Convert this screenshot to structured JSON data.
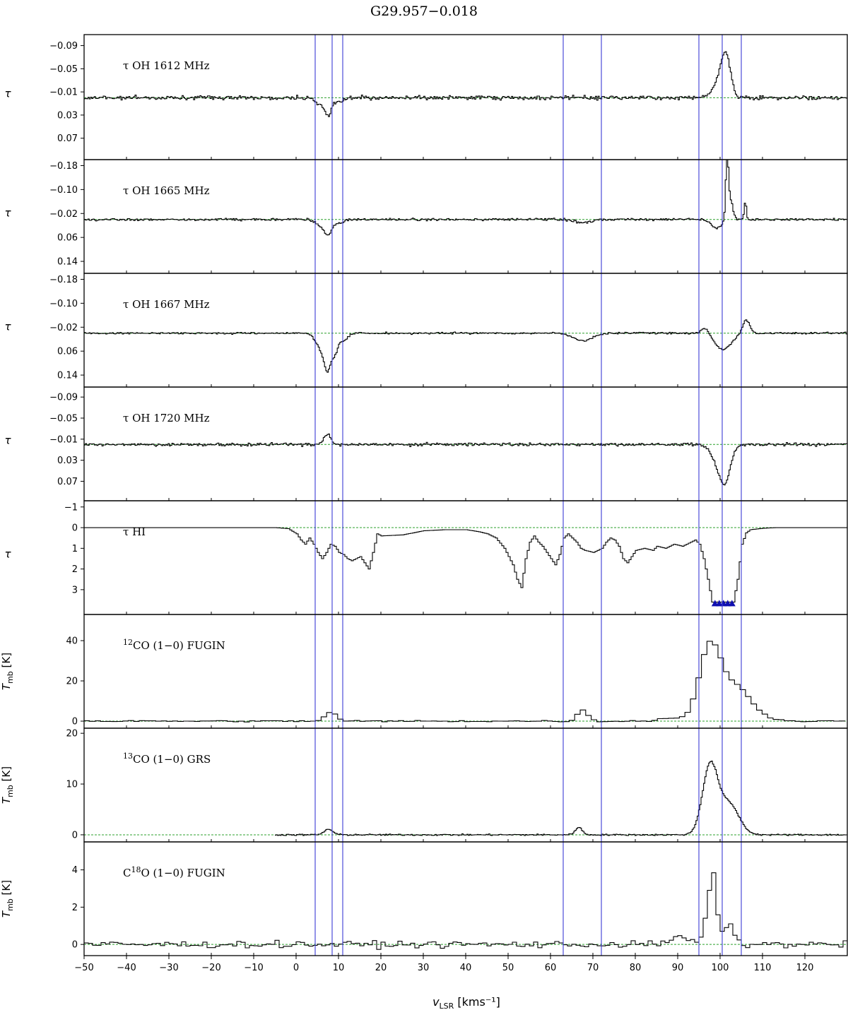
{
  "figure": {
    "title": "G29.957−0.018",
    "xlabel": "v",
    "xlabel_sub": "LSR",
    "xlabel_unit": " [kms⁻¹]",
    "xlim": [
      -50,
      130
    ],
    "xticks": [
      -50,
      -40,
      -30,
      -20,
      -10,
      0,
      10,
      20,
      30,
      40,
      50,
      60,
      70,
      80,
      90,
      100,
      110,
      120
    ],
    "vlines": [
      4.5,
      8.5,
      11,
      63,
      72,
      95,
      100.5,
      105
    ],
    "colors": {
      "spectrum": "#000000",
      "baseline": "#2ca02c",
      "vline": "#3b3bd6",
      "marker": "#1010b0"
    }
  },
  "chart_data": [
    {
      "type": "line",
      "label": "τ OH 1612 MHz",
      "ylabel": "τ",
      "ylim": [
        0.107,
        -0.109
      ],
      "yticks": [
        -0.09,
        -0.05,
        -0.01,
        0.03,
        0.07
      ],
      "ytick_labels": [
        "−0.09",
        "−0.05",
        "−0.01",
        "0.03",
        "0.07"
      ],
      "baseline": 0.0,
      "noise": 0.0035,
      "noise_range": [
        -50,
        130
      ],
      "components": [
        {
          "center": 7.5,
          "amp": 0.028,
          "width": 0.8
        },
        {
          "center": 5.5,
          "amp": 0.012,
          "width": 1.2
        },
        {
          "center": 10.0,
          "amp": 0.008,
          "width": 1.0
        },
        {
          "center": 101.3,
          "amp": -0.065,
          "width": 1.1
        },
        {
          "center": 99.5,
          "amp": -0.025,
          "width": 1.5
        }
      ]
    },
    {
      "type": "line",
      "label": "τ OH 1665 MHz",
      "ylabel": "τ",
      "ylim": [
        0.18,
        -0.2
      ],
      "yticks": [
        -0.18,
        -0.1,
        -0.02,
        0.06,
        0.14
      ],
      "ytick_labels": [
        "−0.18",
        "−0.10",
        "−0.02",
        "0.06",
        "0.14"
      ],
      "baseline": 0.0,
      "noise": 0.004,
      "noise_range": [
        -50,
        130
      ],
      "components": [
        {
          "center": 7.5,
          "amp": 0.045,
          "width": 0.9
        },
        {
          "center": 5.8,
          "amp": 0.02,
          "width": 1.2
        },
        {
          "center": 10.0,
          "amp": 0.012,
          "width": 1.0
        },
        {
          "center": 67.5,
          "amp": 0.01,
          "width": 2.0
        },
        {
          "center": 101.5,
          "amp": -0.2,
          "width": 0.3
        },
        {
          "center": 102.2,
          "amp": -0.07,
          "width": 0.6
        },
        {
          "center": 105.8,
          "amp": -0.06,
          "width": 0.25
        },
        {
          "center": 99.0,
          "amp": 0.03,
          "width": 1.2
        }
      ]
    },
    {
      "type": "line",
      "label": "τ OH 1667 MHz",
      "ylabel": "τ",
      "ylim": [
        0.18,
        -0.2
      ],
      "yticks": [
        -0.18,
        -0.1,
        -0.02,
        0.06,
        0.14
      ],
      "ytick_labels": [
        "−0.18",
        "−0.10",
        "−0.02",
        "0.06",
        "0.14"
      ],
      "baseline": 0.0,
      "noise": 0.003,
      "noise_range": [
        -50,
        130
      ],
      "components": [
        {
          "center": 7.3,
          "amp": 0.1,
          "width": 0.8
        },
        {
          "center": 5.8,
          "amp": 0.05,
          "width": 1.3
        },
        {
          "center": 9.0,
          "amp": 0.06,
          "width": 0.7
        },
        {
          "center": 11.0,
          "amp": 0.025,
          "width": 1.0
        },
        {
          "center": 67.5,
          "amp": 0.025,
          "width": 2.2
        },
        {
          "center": 96.5,
          "amp": -0.02,
          "width": 1.0
        },
        {
          "center": 100.5,
          "amp": 0.055,
          "width": 2.0
        },
        {
          "center": 106.0,
          "amp": -0.045,
          "width": 0.8
        }
      ]
    },
    {
      "type": "line",
      "label": "τ OH 1720 MHz",
      "ylabel": "τ",
      "ylim": [
        0.107,
        -0.109
      ],
      "yticks": [
        -0.09,
        -0.05,
        -0.01,
        0.03,
        0.07
      ],
      "ytick_labels": [
        "−0.09",
        "−0.05",
        "−0.01",
        "0.03",
        "0.07"
      ],
      "baseline": 0.0,
      "noise": 0.003,
      "noise_range": [
        -50,
        130
      ],
      "components": [
        {
          "center": 7.3,
          "amp": -0.02,
          "width": 0.8
        },
        {
          "center": 101.0,
          "amp": 0.065,
          "width": 1.3
        },
        {
          "center": 99.0,
          "amp": 0.025,
          "width": 1.5
        }
      ]
    },
    {
      "type": "line",
      "label": "τ HI",
      "ylabel": "τ",
      "ylim": [
        4.2,
        -1.3
      ],
      "yticks": [
        -1,
        0,
        1,
        2,
        3
      ],
      "ytick_labels": [
        "−1",
        "0",
        "1",
        "2",
        "3"
      ],
      "baseline": 0.0,
      "noise": 0.0,
      "noise_range": [
        -50,
        130
      ],
      "points": [
        [
          -50,
          0
        ],
        [
          -5,
          0
        ],
        [
          -2,
          0.05
        ],
        [
          0,
          0.3
        ],
        [
          1,
          0.6
        ],
        [
          2,
          0.8
        ],
        [
          3,
          0.5
        ],
        [
          4,
          0.8
        ],
        [
          5,
          1.2
        ],
        [
          6,
          1.5
        ],
        [
          7,
          1.2
        ],
        [
          8,
          0.8
        ],
        [
          9,
          0.9
        ],
        [
          10,
          1.2
        ],
        [
          11,
          1.3
        ],
        [
          12,
          1.5
        ],
        [
          13,
          1.6
        ],
        [
          14,
          1.5
        ],
        [
          15,
          1.4
        ],
        [
          16,
          1.7
        ],
        [
          17,
          2.0
        ],
        [
          18,
          1.2
        ],
        [
          19,
          0.3
        ],
        [
          20,
          0.4
        ],
        [
          25,
          0.35
        ],
        [
          30,
          0.15
        ],
        [
          35,
          0.1
        ],
        [
          40,
          0.1
        ],
        [
          43,
          0.2
        ],
        [
          45,
          0.3
        ],
        [
          47,
          0.5
        ],
        [
          49,
          1.0
        ],
        [
          51,
          1.8
        ],
        [
          52,
          2.5
        ],
        [
          53,
          2.9
        ],
        [
          54,
          1.5
        ],
        [
          55,
          0.7
        ],
        [
          56,
          0.4
        ],
        [
          57,
          0.7
        ],
        [
          58,
          0.9
        ],
        [
          60,
          1.5
        ],
        [
          61,
          1.8
        ],
        [
          62,
          1.3
        ],
        [
          63,
          0.5
        ],
        [
          64,
          0.3
        ],
        [
          65,
          0.5
        ],
        [
          66,
          0.7
        ],
        [
          67,
          1.0
        ],
        [
          68,
          1.1
        ],
        [
          70,
          1.2
        ],
        [
          72,
          1.0
        ],
        [
          73,
          0.7
        ],
        [
          74,
          0.5
        ],
        [
          75,
          0.6
        ],
        [
          76,
          0.9
        ],
        [
          77,
          1.5
        ],
        [
          78,
          1.7
        ],
        [
          79,
          1.4
        ],
        [
          80,
          1.1
        ],
        [
          82,
          1.0
        ],
        [
          84,
          1.1
        ],
        [
          85,
          0.9
        ],
        [
          87,
          1.0
        ],
        [
          89,
          0.8
        ],
        [
          91,
          0.9
        ],
        [
          93,
          0.7
        ],
        [
          94,
          0.6
        ],
        [
          95,
          0.8
        ],
        [
          96,
          1.5
        ],
        [
          97,
          2.5
        ],
        [
          98,
          3.6
        ],
        [
          99,
          3.6
        ],
        [
          100,
          3.6
        ],
        [
          101,
          3.6
        ],
        [
          102,
          3.6
        ],
        [
          103,
          3.6
        ],
        [
          104,
          2.5
        ],
        [
          105,
          0.8
        ],
        [
          106,
          0.25
        ],
        [
          107,
          0.1
        ],
        [
          110,
          0.03
        ],
        [
          113,
          0
        ],
        [
          130,
          0
        ]
      ],
      "saturated": {
        "x": [
          98.8,
          99.8,
          100.8,
          101.8,
          102.8
        ],
        "value": 3.6
      }
    },
    {
      "type": "line",
      "label": "CO (1−0) FUGIN",
      "label_sup": "12",
      "label_prefix": "",
      "ylabel": "T",
      "ylabel_sub": "mb",
      "ylabel_unit": " [K]",
      "ylim": [
        -3.5,
        53
      ],
      "yticks": [
        0,
        20,
        40
      ],
      "ytick_labels": [
        "0",
        "20",
        "40"
      ],
      "baseline": 0.0,
      "noise": 0.4,
      "noise_range": [
        -50,
        130
      ],
      "components": [
        {
          "center": 7.5,
          "amp": 4.5,
          "width": 1.3
        },
        {
          "center": 67.0,
          "amp": 5.5,
          "width": 1.2
        },
        {
          "center": 96.8,
          "amp": 33.0,
          "width": 2.4
        },
        {
          "center": 102.5,
          "amp": 18.0,
          "width": 4.0
        },
        {
          "center": 88.0,
          "amp": 1.5,
          "width": 3.0
        }
      ]
    },
    {
      "type": "line",
      "label": "CO (1−0) GRS",
      "label_sup": "13",
      "label_prefix": "",
      "ylabel": "T",
      "ylabel_sub": "mb",
      "ylabel_unit": " [K]",
      "ylim": [
        -1.4,
        21
      ],
      "yticks": [
        0,
        10,
        20
      ],
      "ytick_labels": [
        "0",
        "10",
        "20"
      ],
      "baseline": 0.0,
      "noise": 0.15,
      "noise_range": [
        -5,
        130
      ],
      "components": [
        {
          "center": 7.5,
          "amp": 1.1,
          "width": 1.0
        },
        {
          "center": 66.5,
          "amp": 1.5,
          "width": 0.8
        },
        {
          "center": 97.5,
          "amp": 13.5,
          "width": 1.8
        },
        {
          "center": 102.0,
          "amp": 6.0,
          "width": 2.3
        }
      ]
    },
    {
      "type": "line",
      "label": "O (1−0) FUGIN",
      "label_sup": "18",
      "label_prefix": "C",
      "ylabel": "T",
      "ylabel_sub": "mb",
      "ylabel_unit": " [K]",
      "ylim": [
        -0.6,
        5.5
      ],
      "yticks": [
        0,
        2,
        4
      ],
      "ytick_labels": [
        "0",
        "2",
        "4"
      ],
      "baseline": 0.0,
      "noise": 0.18,
      "noise_range": [
        -50,
        130
      ],
      "components": [
        {
          "center": 98.0,
          "amp": 3.6,
          "width": 0.8
        },
        {
          "center": 96.5,
          "amp": 1.5,
          "width": 0.8
        },
        {
          "center": 101.8,
          "amp": 1.0,
          "width": 1.2
        },
        {
          "center": 90.0,
          "amp": 0.35,
          "width": 2.5
        }
      ]
    }
  ]
}
